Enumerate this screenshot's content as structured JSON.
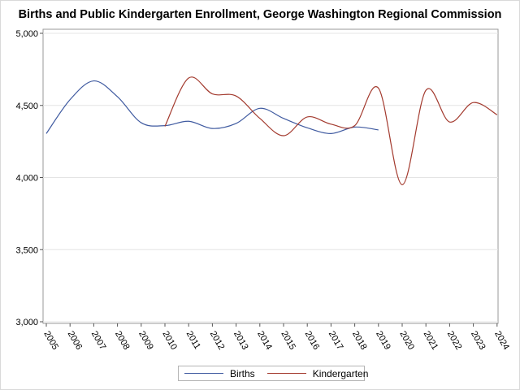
{
  "chart_data": {
    "type": "line",
    "title": "Births and Public Kindergarten Enrollment, George Washington Regional Commission",
    "xlabel": "",
    "ylabel": "",
    "x": [
      2005,
      2006,
      2007,
      2008,
      2009,
      2010,
      2011,
      2012,
      2013,
      2014,
      2015,
      2016,
      2017,
      2018,
      2019,
      2020,
      2021,
      2022,
      2023,
      2024
    ],
    "x_tick_labels": [
      "2005",
      "2006",
      "2007",
      "2008",
      "2009",
      "2010",
      "2011",
      "2012",
      "2013",
      "2014",
      "2015",
      "2016",
      "2017",
      "2018",
      "2019",
      "2020",
      "2021",
      "2022",
      "2023",
      "2024"
    ],
    "ylim": [
      3000,
      5000
    ],
    "y_ticks": [
      3000,
      3500,
      4000,
      4500,
      5000
    ],
    "y_tick_labels": [
      "3,000",
      "3,500",
      "4,000",
      "4,500",
      "5,000"
    ],
    "grid": "horizontal",
    "legend_position": "bottom",
    "series": [
      {
        "name": "Births",
        "color": "#3f5aa0",
        "x": [
          2005,
          2006,
          2007,
          2008,
          2009,
          2010,
          2011,
          2012,
          2013,
          2014,
          2015,
          2016,
          2017,
          2018,
          2019
        ],
        "values": [
          4305,
          4540,
          4670,
          4560,
          4380,
          4360,
          4390,
          4340,
          4375,
          4480,
          4410,
          4345,
          4305,
          4350,
          4330
        ]
      },
      {
        "name": "Kindergarten",
        "color": "#a33a2e",
        "x": [
          2010,
          2011,
          2012,
          2013,
          2014,
          2015,
          2016,
          2017,
          2018,
          2019,
          2020,
          2021,
          2022,
          2023,
          2024
        ],
        "values": [
          4355,
          4690,
          4580,
          4565,
          4410,
          4290,
          4420,
          4370,
          4360,
          4620,
          3950,
          4605,
          4385,
          4520,
          4435
        ]
      }
    ]
  }
}
